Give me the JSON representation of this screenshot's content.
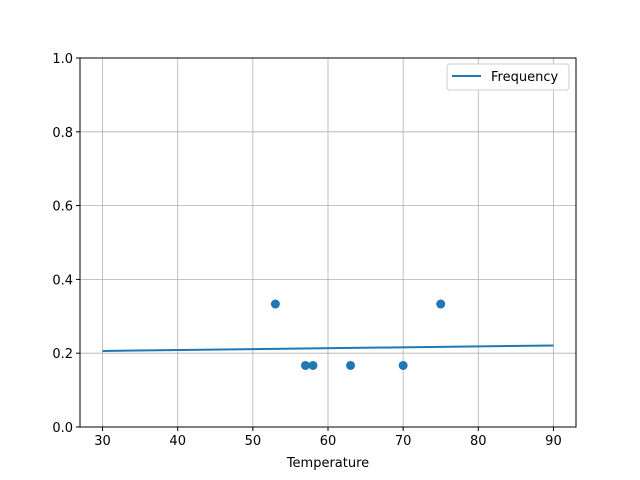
{
  "chart_data": {
    "type": "scatter",
    "title": "",
    "xlabel": "Temperature",
    "ylabel": "",
    "xlim": [
      27,
      93
    ],
    "ylim": [
      0,
      1.0
    ],
    "grid": true,
    "legend_position": "top-right",
    "xticks": [
      30,
      40,
      50,
      60,
      70,
      80,
      90
    ],
    "yticks": [
      0.0,
      0.2,
      0.4,
      0.6,
      0.8,
      1.0
    ],
    "xtick_labels": [
      "30",
      "40",
      "50",
      "60",
      "70",
      "80",
      "90"
    ],
    "ytick_labels": [
      "0.0",
      "0.2",
      "0.4",
      "0.6",
      "0.8",
      "1.0"
    ],
    "color": "#1f77b4",
    "scatter": {
      "x": [
        53,
        57,
        58,
        63,
        70,
        75
      ],
      "y": [
        0.3333,
        0.1667,
        0.1667,
        0.1667,
        0.1667,
        0.3333
      ]
    },
    "line": {
      "name": "Frequency",
      "x": [
        30,
        90
      ],
      "y": [
        0.206,
        0.221
      ]
    }
  }
}
